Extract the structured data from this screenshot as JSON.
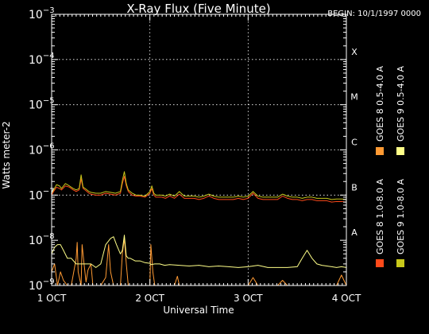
{
  "chart_data": {
    "type": "line",
    "title": "X-Ray Flux (Five Minute)",
    "begin_label": "BEGIN: 10/1/1997 0000",
    "xlabel": "Universal Time",
    "ylabel": "Watts meter-2",
    "yscale": "log",
    "ylim": [
      1e-09,
      0.001
    ],
    "xlim": [
      0,
      3
    ],
    "x_unit": "days since 1 OCT 1997 0000 UT",
    "yticks": [
      {
        "value": 1e-09,
        "base": "10",
        "exp": "−9"
      },
      {
        "value": 1e-08,
        "base": "10",
        "exp": "−8"
      },
      {
        "value": 1e-07,
        "base": "10",
        "exp": "−7"
      },
      {
        "value": 1e-06,
        "base": "10",
        "exp": "−6"
      },
      {
        "value": 1e-05,
        "base": "10",
        "exp": "−5"
      },
      {
        "value": 0.0001,
        "base": "10",
        "exp": "−4"
      },
      {
        "value": 0.001,
        "base": "10",
        "exp": "−3"
      }
    ],
    "xticks": [
      {
        "value": 0,
        "label": "1 OCT"
      },
      {
        "value": 1,
        "label": "2 OCT"
      },
      {
        "value": 2,
        "label": "3 OCT"
      },
      {
        "value": 3,
        "label": "4 OCT"
      }
    ],
    "flare_classes": [
      {
        "label": "A",
        "value": 1.5e-08
      },
      {
        "label": "B",
        "value": 1.5e-07
      },
      {
        "label": "C",
        "value": 1.5e-06
      },
      {
        "label": "M",
        "value": 1.5e-05
      },
      {
        "label": "X",
        "value": 0.00015
      }
    ],
    "grid": "dotted, at day boundaries and at 1e-7, 1e-6, 1e-5, 1e-4",
    "legend_position": "right, vertical",
    "series": [
      {
        "name": "GOES 8 1.0-8.0 A",
        "color": "#ff4a1a",
        "x": [
          0,
          0.02,
          0.05,
          0.08,
          0.1,
          0.14,
          0.18,
          0.22,
          0.25,
          0.28,
          0.3,
          0.32,
          0.34,
          0.36,
          0.38,
          0.4,
          0.45,
          0.5,
          0.55,
          0.6,
          0.65,
          0.7,
          0.72,
          0.74,
          0.76,
          0.78,
          0.82,
          0.86,
          0.9,
          0.95,
          1.0,
          1.02,
          1.04,
          1.06,
          1.08,
          1.12,
          1.16,
          1.2,
          1.25,
          1.3,
          1.35,
          1.4,
          1.4,
          1.45,
          1.5,
          1.55,
          1.6,
          1.65,
          1.7,
          1.75,
          1.8,
          1.85,
          1.9,
          1.95,
          2.0,
          2.05,
          2.1,
          2.15,
          2.2,
          2.25,
          2.3,
          2.35,
          2.4,
          2.45,
          2.5,
          2.55,
          2.6,
          2.65,
          2.7,
          2.75,
          2.8,
          2.85,
          2.9,
          2.95,
          3.0
        ],
        "y": [
          1e-07,
          1.2e-07,
          1.5e-07,
          1.4e-07,
          1.3e-07,
          1.6e-07,
          1.5e-07,
          1.3e-07,
          1.2e-07,
          1.3e-07,
          2.3e-07,
          1.4e-07,
          1.3e-07,
          1.2e-07,
          1.1e-07,
          1.05e-07,
          1e-07,
          1e-07,
          1.1e-07,
          1.05e-07,
          1e-07,
          1.1e-07,
          1.8e-07,
          2.6e-07,
          1.6e-07,
          1.2e-07,
          1e-07,
          9.5e-08,
          9.5e-08,
          9e-08,
          1.1e-07,
          1.4e-07,
          1e-07,
          9e-08,
          9e-08,
          9e-08,
          8.5e-08,
          9.5e-08,
          8.5e-08,
          1.05e-07,
          8.5e-08,
          8.5e-08,
          8.5e-08,
          8.5e-08,
          8e-08,
          8.5e-08,
          9.5e-08,
          8.5e-08,
          8e-08,
          8e-08,
          8e-08,
          8e-08,
          8.5e-08,
          8e-08,
          8.5e-08,
          1.1e-07,
          8.5e-08,
          8e-08,
          8e-08,
          8e-08,
          8e-08,
          9.5e-08,
          8.5e-08,
          8e-08,
          8e-08,
          7.5e-08,
          8e-08,
          8e-08,
          7.5e-08,
          7.5e-08,
          7.5e-08,
          7e-08,
          7.2e-08,
          7.2e-08,
          7e-08
        ]
      },
      {
        "name": "GOES 8 0.5-4.0 A",
        "color": "#ff9a33",
        "x": [
          0,
          0.03,
          0.06,
          0.09,
          0.12,
          0.16,
          0.2,
          0.25,
          0.26,
          0.27,
          0.3,
          0.31,
          0.33,
          0.35,
          0.37,
          0.4,
          0.42,
          0.45,
          0.5,
          0.55,
          0.58,
          0.6,
          0.63,
          0.66,
          0.7,
          0.72,
          0.74,
          0.76,
          0.78,
          0.8,
          0.85,
          0.9,
          0.95,
          1.0,
          1.01,
          1.03,
          1.05,
          1.1,
          1.15,
          1.2,
          1.25,
          1.28,
          1.3,
          1.35,
          1.4,
          1.45,
          1.5,
          1.55,
          1.6,
          1.65,
          1.7,
          1.75,
          1.8,
          1.9,
          2.0,
          2.05,
          2.1,
          2.2,
          2.3,
          2.35,
          2.4,
          2.5,
          2.6,
          2.7,
          2.8,
          2.9,
          2.95,
          3.0
        ],
        "y": [
          2e-09,
          3e-09,
          1e-09,
          2e-09,
          1.3e-09,
          1e-09,
          1e-09,
          4e-09,
          9e-09,
          2e-09,
          1e-09,
          8e-09,
          3e-09,
          1.2e-09,
          2.2e-09,
          3e-09,
          1e-09,
          1e-09,
          1e-09,
          1.5e-09,
          8e-09,
          2e-09,
          1e-09,
          1e-09,
          1e-09,
          5e-09,
          1.1e-08,
          3e-09,
          1e-09,
          1e-09,
          1e-09,
          1e-09,
          1e-09,
          1e-09,
          8e-09,
          2e-09,
          1e-09,
          1e-09,
          1e-09,
          1e-09,
          1e-09,
          1.6e-09,
          1e-09,
          1e-09,
          1e-09,
          1e-09,
          1e-09,
          1e-09,
          1e-09,
          1e-09,
          1e-09,
          1e-09,
          1e-09,
          1e-09,
          1e-09,
          1.5e-09,
          1e-09,
          1e-09,
          1e-09,
          1.3e-09,
          1e-09,
          1e-09,
          1e-09,
          1e-09,
          1e-09,
          1e-09,
          1.7e-09,
          1e-09
        ]
      },
      {
        "name": "GOES 9 1.0-8.0 A",
        "color": "#c8c81a",
        "x": [
          0,
          0.02,
          0.05,
          0.08,
          0.1,
          0.14,
          0.18,
          0.22,
          0.25,
          0.28,
          0.3,
          0.32,
          0.34,
          0.36,
          0.38,
          0.4,
          0.45,
          0.5,
          0.55,
          0.6,
          0.65,
          0.7,
          0.72,
          0.74,
          0.76,
          0.78,
          0.82,
          0.86,
          0.9,
          0.95,
          1.0,
          1.02,
          1.04,
          1.06,
          1.08,
          1.12,
          1.16,
          1.2,
          1.25,
          1.3,
          1.35,
          1.4,
          1.45,
          1.5,
          1.55,
          1.6,
          1.65,
          1.7,
          1.75,
          1.8,
          1.85,
          1.9,
          1.95,
          2.0,
          2.05,
          2.1,
          2.15,
          2.2,
          2.25,
          2.3,
          2.35,
          2.4,
          2.45,
          2.5,
          2.55,
          2.6,
          2.65,
          2.7,
          2.75,
          2.8,
          2.85,
          2.9,
          2.95,
          3.0
        ],
        "y": [
          1.1e-07,
          1.3e-07,
          1.7e-07,
          1.6e-07,
          1.4e-07,
          1.8e-07,
          1.6e-07,
          1.4e-07,
          1.3e-07,
          1.4e-07,
          2.8e-07,
          1.5e-07,
          1.4e-07,
          1.3e-07,
          1.2e-07,
          1.15e-07,
          1.1e-07,
          1.1e-07,
          1.2e-07,
          1.15e-07,
          1.1e-07,
          1.2e-07,
          2.1e-07,
          3.3e-07,
          1.8e-07,
          1.3e-07,
          1.1e-07,
          1e-07,
          1e-07,
          9.5e-08,
          1.2e-07,
          1.6e-07,
          1.1e-07,
          1e-07,
          1e-07,
          1e-07,
          9.5e-08,
          1.05e-07,
          9.5e-08,
          1.2e-07,
          9.5e-08,
          9.5e-08,
          9.5e-08,
          9e-08,
          9.5e-08,
          1.05e-07,
          9.5e-08,
          9e-08,
          9e-08,
          9e-08,
          9e-08,
          9.5e-08,
          9e-08,
          9.5e-08,
          1.2e-07,
          9.5e-08,
          9e-08,
          9e-08,
          9e-08,
          9e-08,
          1.05e-07,
          9.5e-08,
          9e-08,
          9e-08,
          8.5e-08,
          9e-08,
          9e-08,
          8.5e-08,
          8.5e-08,
          8.5e-08,
          8e-08,
          8.2e-08,
          8.2e-08,
          8e-08
        ]
      },
      {
        "name": "GOES 9 0.5-4.0 A",
        "color": "#ffff88",
        "x": [
          0,
          0.03,
          0.06,
          0.09,
          0.12,
          0.16,
          0.2,
          0.25,
          0.3,
          0.35,
          0.4,
          0.45,
          0.5,
          0.55,
          0.6,
          0.63,
          0.66,
          0.7,
          0.72,
          0.74,
          0.76,
          0.78,
          0.8,
          0.85,
          0.9,
          0.95,
          1.0,
          1.01,
          1.05,
          1.1,
          1.15,
          1.2,
          1.3,
          1.4,
          1.5,
          1.6,
          1.7,
          1.8,
          1.9,
          2.0,
          2.1,
          2.2,
          2.3,
          2.4,
          2.5,
          2.55,
          2.6,
          2.65,
          2.7,
          2.75,
          2.8,
          2.85,
          2.9,
          2.95,
          3.0
        ],
        "y": [
          5e-09,
          7e-09,
          8e-09,
          8e-09,
          6e-09,
          4e-09,
          4e-09,
          3e-09,
          3e-09,
          3e-09,
          3e-09,
          2.5e-09,
          3e-09,
          8e-09,
          1.1e-08,
          1.2e-08,
          8e-09,
          5e-09,
          6e-09,
          1.3e-08,
          4.5e-09,
          4e-09,
          4e-09,
          3.5e-09,
          3.5e-09,
          3.2e-09,
          3.1e-09,
          2.9e-09,
          3e-09,
          3e-09,
          2.8e-09,
          2.9e-09,
          2.8e-09,
          2.7e-09,
          2.8e-09,
          2.6e-09,
          2.7e-09,
          2.6e-09,
          2.5e-09,
          2.6e-09,
          2.8e-09,
          2.5e-09,
          2.5e-09,
          2.5e-09,
          2.6e-09,
          4e-09,
          6e-09,
          4e-09,
          3e-09,
          2.8e-09,
          2.7e-09,
          2.6e-09,
          2.5e-09,
          2.6e-09,
          2.5e-09
        ]
      }
    ]
  }
}
